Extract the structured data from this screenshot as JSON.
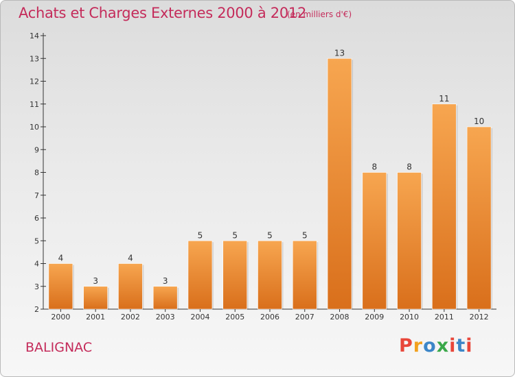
{
  "header": {
    "title": "Achats et Charges Externes 2000 à 2012",
    "subtitle": "(en milliers d'€)"
  },
  "footer": {
    "commune": "BALIGNAC",
    "brand": "Proxiti",
    "brand_colors": [
      "#e8463a",
      "#f2a11f",
      "#3c86c8",
      "#3aa84a",
      "#e8463a",
      "#3c86c8",
      "#e8463a"
    ]
  },
  "colors": {
    "title": "#c42b5a",
    "bar_light": "#f7a650",
    "bar_dark": "#d96f1b",
    "axis": "#333333"
  },
  "chart_data": {
    "type": "bar",
    "title": "Achats et Charges Externes 2000 à 2012",
    "subtitle": "(en milliers d'€)",
    "categories": [
      "2000",
      "2001",
      "2002",
      "2003",
      "2004",
      "2005",
      "2006",
      "2007",
      "2008",
      "2009",
      "2010",
      "2011",
      "2012"
    ],
    "values": [
      4,
      3,
      4,
      3,
      5,
      5,
      5,
      5,
      13,
      8,
      8,
      11,
      10
    ],
    "ylim": [
      2,
      14
    ],
    "yticks": [
      2,
      3,
      4,
      5,
      6,
      7,
      8,
      9,
      10,
      11,
      12,
      13,
      14
    ],
    "xlabel": "",
    "ylabel": "",
    "grid": false,
    "legend": "none"
  }
}
